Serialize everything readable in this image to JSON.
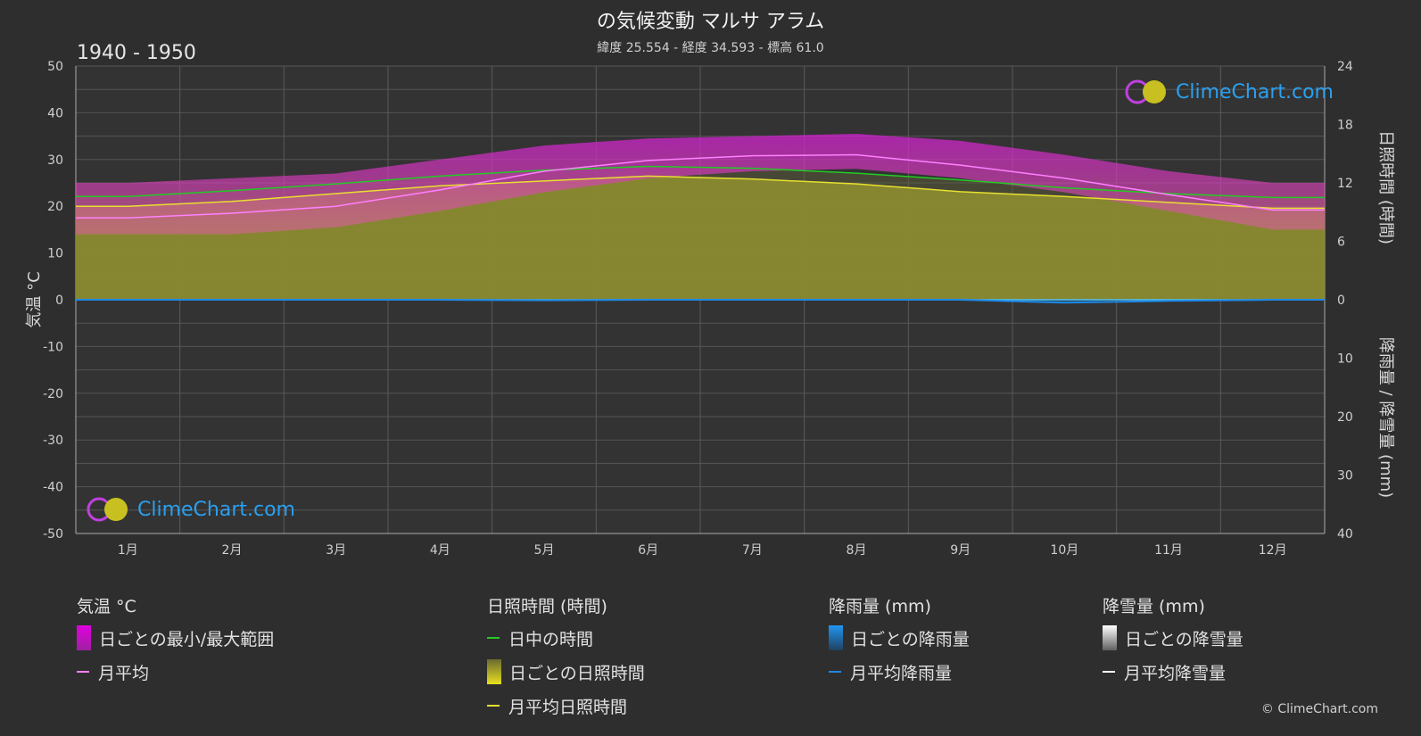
{
  "header": {
    "title": "の気候変動 マルサ アラム",
    "subtitle": "緯度 25.554 - 経度 34.593 - 標高 61.0",
    "period": "1940 - 1950"
  },
  "branding": {
    "logo_text": "ClimeChart.com",
    "credit": "© ClimeChart.com"
  },
  "chart_data": {
    "type": "area",
    "categories": [
      "1月",
      "2月",
      "3月",
      "4月",
      "5月",
      "6月",
      "7月",
      "8月",
      "9月",
      "10月",
      "11月",
      "12月"
    ],
    "left_axis": {
      "label": "気温 °C",
      "range": [
        -50,
        50
      ],
      "ticks": [
        50,
        40,
        30,
        20,
        10,
        0,
        -10,
        -20,
        -30,
        -40,
        -50
      ]
    },
    "right_axis_top": {
      "label": "日照時間 (時間)",
      "range": [
        0,
        24
      ],
      "ticks": [
        24,
        18,
        12,
        6,
        0
      ]
    },
    "right_axis_bottom": {
      "label": "降雨量 / 降雪量 (mm)",
      "range": [
        0,
        40
      ],
      "ticks": [
        0,
        10,
        20,
        30,
        40
      ]
    },
    "series": [
      {
        "name": "月平均",
        "unit": "°C",
        "color": "#ff80ff",
        "values": [
          17.5,
          18.5,
          20.0,
          23.5,
          27.5,
          29.8,
          30.8,
          31.0,
          28.8,
          26.0,
          22.5,
          19.2
        ]
      },
      {
        "name": "日ごとの最小/最大範囲",
        "unit": "°C",
        "color": "#e040e0",
        "min": [
          14.0,
          14.0,
          15.5,
          19.0,
          23.0,
          26.0,
          27.5,
          28.0,
          26.0,
          23.0,
          19.0,
          15.0
        ],
        "max": [
          25.0,
          26.0,
          27.0,
          30.0,
          33.0,
          34.5,
          35.0,
          35.5,
          34.0,
          31.0,
          27.5,
          25.0
        ]
      },
      {
        "name": "日中の時間",
        "unit": "時間",
        "color": "#22cc22",
        "values": [
          10.6,
          11.2,
          11.9,
          12.7,
          13.3,
          13.7,
          13.5,
          13.0,
          12.3,
          11.5,
          10.9,
          10.5
        ]
      },
      {
        "name": "月平均日照時間",
        "unit": "時間",
        "color": "#e8e030",
        "values": [
          9.6,
          10.1,
          10.9,
          11.7,
          12.2,
          12.7,
          12.4,
          11.9,
          11.1,
          10.6,
          10.0,
          9.4
        ]
      },
      {
        "name": "月平均降雨量",
        "unit": "mm",
        "color": "#1e88e5",
        "values": [
          0.0,
          0.0,
          0.0,
          0.0,
          0.1,
          0.0,
          0.0,
          0.0,
          0.0,
          0.5,
          0.2,
          0.0
        ]
      },
      {
        "name": "月平均降雪量",
        "unit": "mm",
        "color": "#ffffff",
        "values": [
          0,
          0,
          0,
          0,
          0,
          0,
          0,
          0,
          0,
          0,
          0,
          0
        ]
      }
    ]
  },
  "legend": {
    "temperature": {
      "header": "気温 °C",
      "items": [
        "日ごとの最小/最大範囲",
        "月平均"
      ]
    },
    "sunshine": {
      "header": "日照時間 (時間)",
      "items": [
        "日中の時間",
        "日ごとの日照時間",
        "月平均日照時間"
      ]
    },
    "rain": {
      "header": "降雨量 (mm)",
      "items": [
        "日ごとの降雨量",
        "月平均降雨量"
      ]
    },
    "snow": {
      "header": "降雪量 (mm)",
      "items": [
        "日ごとの降雪量",
        "月平均降雪量"
      ]
    }
  }
}
